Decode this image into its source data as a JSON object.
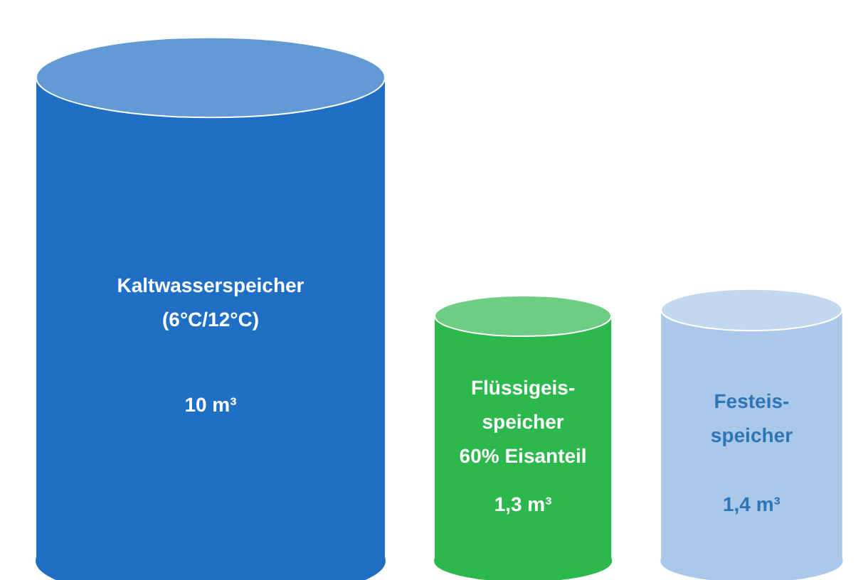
{
  "chart_data": {
    "type": "other",
    "categories": [
      "Kaltwasserspeicher\n(6°C/12°C)",
      "Flüssigeis-\nspeicher\n60% Eisanteil",
      "Festeis-\nspeicher"
    ],
    "values": [
      10,
      1.3,
      1.4
    ],
    "value_labels": [
      "10 m³",
      "1,3 m³",
      "1,4 m³"
    ],
    "colors": [
      "#1f6fc5",
      "#2db84e",
      "#a9c8ea"
    ]
  }
}
